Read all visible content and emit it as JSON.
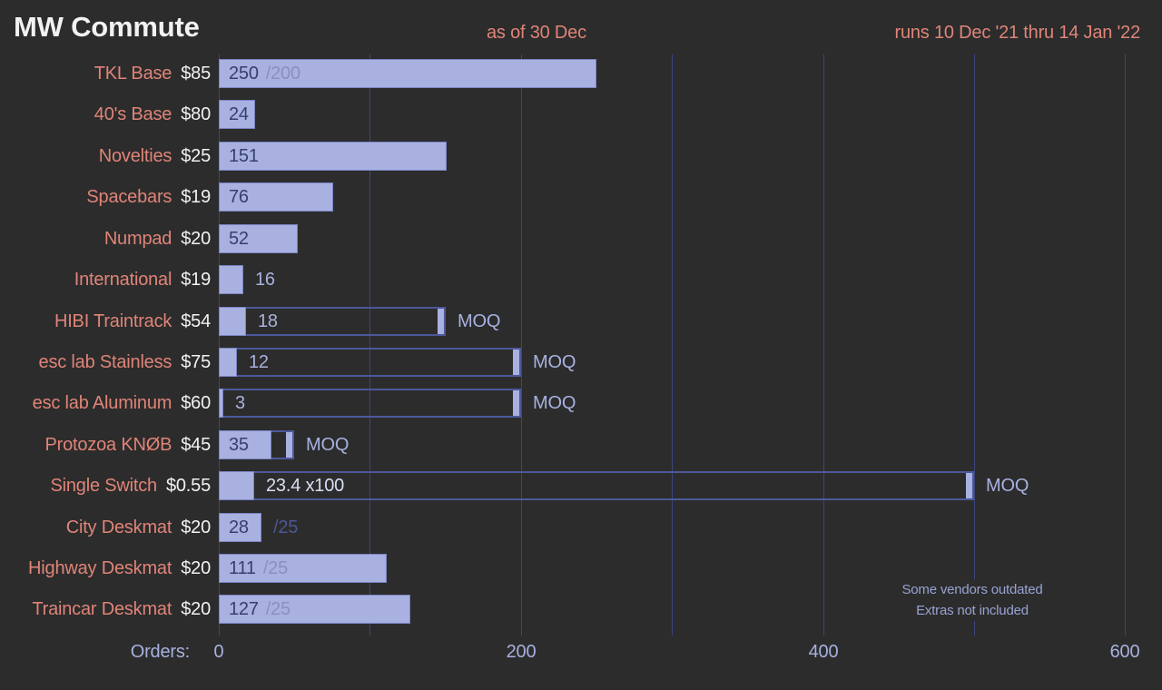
{
  "header": {
    "title": "MW Commute",
    "as_of": "as of 30 Dec",
    "runs": "runs 10 Dec '21 thru 14 Jan '22"
  },
  "axis": {
    "label": "Orders:",
    "tick_labels": [
      "0",
      "200",
      "400",
      "600"
    ],
    "tick_values": [
      0,
      200,
      400,
      600
    ],
    "minor_step": 100
  },
  "notes": [
    "Some vendors outdated",
    "Extras not included"
  ],
  "colors": {
    "background": "#2c2c2c",
    "title_text": "#f2f2f2",
    "salmon_text": "#e08478",
    "periwinkle": "#a8b1e0",
    "bar_fill": "#a8b1e0",
    "value_dark": "#373f6d",
    "goal_muted_on_bar": "#8991bd",
    "goal_dark_on_bg": "#4c5795",
    "gridline": "#3b4680",
    "moq_border": "#4d589b",
    "value_bright": "#dadef4",
    "notes_text": "#99a3d2"
  },
  "chart_data": {
    "type": "bar",
    "orientation": "horizontal",
    "title": "MW Commute",
    "xlabel": "Orders",
    "xlim": [
      0,
      600
    ],
    "grid": "vertical, every 100, labeled every 200",
    "legend": "none",
    "rows": [
      {
        "label": "TKL Base",
        "price": "$85",
        "orders": 250,
        "value_text": "250",
        "goal": 200,
        "goal_text": "/200",
        "goal_outside": false,
        "value_outside": false,
        "value_bright": false,
        "moq": null,
        "moq_label": ""
      },
      {
        "label": "40's Base",
        "price": "$80",
        "orders": 24,
        "value_text": "24",
        "goal": null,
        "goal_text": "",
        "goal_outside": false,
        "value_outside": false,
        "value_bright": false,
        "moq": null,
        "moq_label": ""
      },
      {
        "label": "Novelties",
        "price": "$25",
        "orders": 151,
        "value_text": "151",
        "goal": null,
        "goal_text": "",
        "goal_outside": false,
        "value_outside": false,
        "value_bright": false,
        "moq": null,
        "moq_label": ""
      },
      {
        "label": "Spacebars",
        "price": "$19",
        "orders": 76,
        "value_text": "76",
        "goal": null,
        "goal_text": "",
        "goal_outside": false,
        "value_outside": false,
        "value_bright": false,
        "moq": null,
        "moq_label": ""
      },
      {
        "label": "Numpad",
        "price": "$20",
        "orders": 52,
        "value_text": "52",
        "goal": null,
        "goal_text": "",
        "goal_outside": false,
        "value_outside": false,
        "value_bright": false,
        "moq": null,
        "moq_label": ""
      },
      {
        "label": "International",
        "price": "$19",
        "orders": 16,
        "value_text": "16",
        "goal": null,
        "goal_text": "",
        "goal_outside": false,
        "value_outside": true,
        "value_bright": false,
        "moq": null,
        "moq_label": ""
      },
      {
        "label": "HIBI Traintrack",
        "price": "$54",
        "orders": 18,
        "value_text": "18",
        "goal": null,
        "goal_text": "",
        "goal_outside": false,
        "value_outside": true,
        "value_bright": false,
        "moq": 150,
        "moq_label": "MOQ"
      },
      {
        "label": "esc lab Stainless",
        "price": "$75",
        "orders": 12,
        "value_text": "12",
        "goal": null,
        "goal_text": "",
        "goal_outside": false,
        "value_outside": true,
        "value_bright": false,
        "moq": 200,
        "moq_label": "MOQ"
      },
      {
        "label": "esc lab Aluminum",
        "price": "$60",
        "orders": 3,
        "value_text": "3",
        "goal": null,
        "goal_text": "",
        "goal_outside": false,
        "value_outside": true,
        "value_bright": false,
        "moq": 200,
        "moq_label": "MOQ"
      },
      {
        "label": "Protozoa KNØB",
        "price": "$45",
        "orders": 35,
        "value_text": "35",
        "goal": null,
        "goal_text": "",
        "goal_outside": false,
        "value_outside": false,
        "value_bright": false,
        "moq": 50,
        "moq_label": "MOQ"
      },
      {
        "label": "Single Switch",
        "price": "$0.55",
        "orders": 23.4,
        "value_text": "23.4 x100",
        "goal": null,
        "goal_text": "",
        "goal_outside": false,
        "value_outside": true,
        "value_bright": true,
        "moq": 500,
        "moq_label": "MOQ"
      },
      {
        "label": "City Deskmat",
        "price": "$20",
        "orders": 28,
        "value_text": "28",
        "goal": 25,
        "goal_text": "/25",
        "goal_outside": true,
        "value_outside": false,
        "value_bright": false,
        "moq": null,
        "moq_label": ""
      },
      {
        "label": "Highway Deskmat",
        "price": "$20",
        "orders": 111,
        "value_text": "111",
        "goal": 25,
        "goal_text": "/25",
        "goal_outside": false,
        "value_outside": false,
        "value_bright": false,
        "moq": null,
        "moq_label": ""
      },
      {
        "label": "Traincar Deskmat",
        "price": "$20",
        "orders": 127,
        "value_text": "127",
        "goal": 25,
        "goal_text": "/25",
        "goal_outside": false,
        "value_outside": false,
        "value_bright": false,
        "moq": null,
        "moq_label": ""
      }
    ]
  }
}
